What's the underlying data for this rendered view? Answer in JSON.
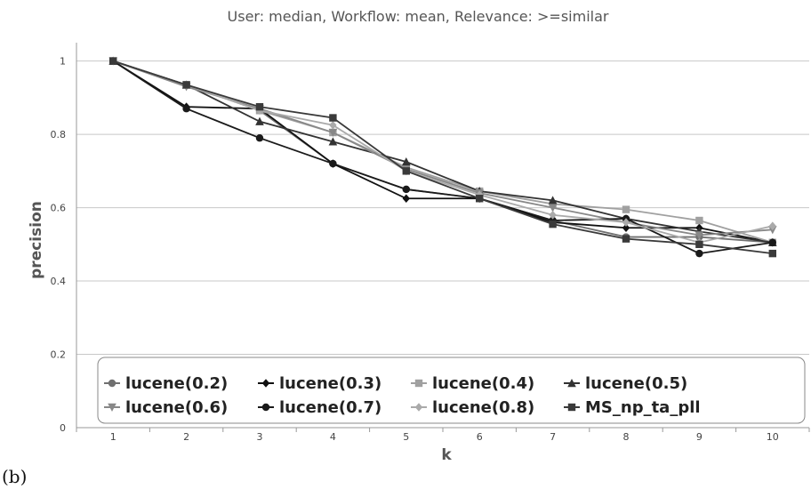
{
  "panel_label": "(b)",
  "chart_data": {
    "type": "line",
    "title": "User: median, Workflow: mean, Relevance: >=similar",
    "xlabel": "k",
    "ylabel": "precision",
    "x": [
      1,
      2,
      3,
      4,
      5,
      6,
      7,
      8,
      9,
      10
    ],
    "xlim": [
      0.5,
      10.5
    ],
    "ylim": [
      0,
      1.05
    ],
    "yticks": [
      0,
      0.2,
      0.4,
      0.6,
      0.8,
      1
    ],
    "ytick_labels": [
      "0",
      "0.2",
      "0.4",
      "0.6",
      "0.8",
      "1"
    ],
    "grid": "horizontal",
    "legend_position": "bottom-inside",
    "series": [
      {
        "name": "lucene(0.2)",
        "marker": "circle",
        "color": "#707070",
        "values": [
          1.0,
          0.935,
          0.865,
          0.72,
          0.65,
          0.625,
          0.565,
          0.52,
          0.52,
          0.505
        ]
      },
      {
        "name": "lucene(0.3)",
        "marker": "diamond",
        "color": "#111111",
        "values": [
          1.0,
          0.875,
          0.87,
          0.72,
          0.625,
          0.625,
          0.56,
          0.545,
          0.545,
          0.505
        ]
      },
      {
        "name": "lucene(0.4)",
        "marker": "square",
        "color": "#a0a0a0",
        "values": [
          1.0,
          0.935,
          0.865,
          0.805,
          0.71,
          0.645,
          0.61,
          0.595,
          0.565,
          0.505
        ]
      },
      {
        "name": "lucene(0.5)",
        "marker": "triangle-up",
        "color": "#333333",
        "values": [
          1.0,
          0.935,
          0.835,
          0.78,
          0.725,
          0.645,
          0.62,
          0.57,
          0.535,
          0.505
        ]
      },
      {
        "name": "lucene(0.6)",
        "marker": "triangle-down",
        "color": "#888888",
        "values": [
          1.0,
          0.93,
          0.87,
          0.805,
          0.705,
          0.64,
          0.6,
          0.56,
          0.525,
          0.54
        ]
      },
      {
        "name": "lucene(0.7)",
        "marker": "circle",
        "color": "#1a1a1a",
        "values": [
          1.0,
          0.87,
          0.79,
          0.72,
          0.65,
          0.625,
          0.565,
          0.57,
          0.475,
          0.505
        ]
      },
      {
        "name": "lucene(0.8)",
        "marker": "diamond",
        "color": "#aaaaaa",
        "values": [
          1.0,
          0.935,
          0.865,
          0.825,
          0.7,
          0.635,
          0.58,
          0.56,
          0.505,
          0.55
        ]
      },
      {
        "name": "MS_np_ta_pll",
        "marker": "square",
        "color": "#3a3a3a",
        "values": [
          1.0,
          0.935,
          0.875,
          0.845,
          0.7,
          0.625,
          0.555,
          0.515,
          0.5,
          0.475
        ]
      }
    ]
  }
}
